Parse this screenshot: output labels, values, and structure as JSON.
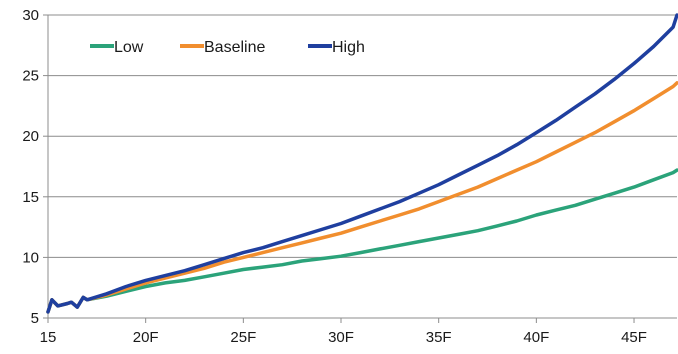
{
  "chart_data": {
    "type": "line",
    "title": "",
    "xlabel": "",
    "ylabel": "",
    "xlim": [
      15,
      47.2
    ],
    "ylim": [
      5,
      30
    ],
    "x_ticks": [
      {
        "value": 15,
        "label": "15"
      },
      {
        "value": 20,
        "label": "20F"
      },
      {
        "value": 25,
        "label": "25F"
      },
      {
        "value": 30,
        "label": "30F"
      },
      {
        "value": 35,
        "label": "35F"
      },
      {
        "value": 40,
        "label": "40F"
      },
      {
        "value": 45,
        "label": "45F"
      }
    ],
    "y_ticks": [
      {
        "value": 5,
        "label": "5"
      },
      {
        "value": 10,
        "label": "10"
      },
      {
        "value": 15,
        "label": "15"
      },
      {
        "value": 20,
        "label": "20"
      },
      {
        "value": 25,
        "label": "25"
      },
      {
        "value": 30,
        "label": "30"
      }
    ],
    "grid": "horizontal",
    "legend_position": "top-left",
    "series": [
      {
        "name": "Low",
        "color": "#2ba37a",
        "points": [
          [
            15,
            5.5
          ],
          [
            15.2,
            6.5
          ],
          [
            15.5,
            6.0
          ],
          [
            16,
            6.2
          ],
          [
            16.2,
            6.3
          ],
          [
            16.5,
            5.9
          ],
          [
            16.8,
            6.7
          ],
          [
            17,
            6.5
          ],
          [
            18,
            6.8
          ],
          [
            19,
            7.2
          ],
          [
            20,
            7.6
          ],
          [
            21,
            7.9
          ],
          [
            22,
            8.1
          ],
          [
            23,
            8.4
          ],
          [
            24,
            8.7
          ],
          [
            25,
            9.0
          ],
          [
            26,
            9.2
          ],
          [
            27,
            9.4
          ],
          [
            28,
            9.7
          ],
          [
            29,
            9.9
          ],
          [
            30,
            10.1
          ],
          [
            31,
            10.4
          ],
          [
            32,
            10.7
          ],
          [
            33,
            11.0
          ],
          [
            34,
            11.3
          ],
          [
            35,
            11.6
          ],
          [
            36,
            11.9
          ],
          [
            37,
            12.2
          ],
          [
            38,
            12.6
          ],
          [
            39,
            13.0
          ],
          [
            40,
            13.5
          ],
          [
            41,
            13.9
          ],
          [
            42,
            14.3
          ],
          [
            43,
            14.8
          ],
          [
            44,
            15.3
          ],
          [
            45,
            15.8
          ],
          [
            46,
            16.4
          ],
          [
            47,
            17.0
          ],
          [
            47.2,
            17.2
          ]
        ]
      },
      {
        "name": "Baseline",
        "color": "#f18e2e",
        "points": [
          [
            15,
            5.5
          ],
          [
            15.2,
            6.5
          ],
          [
            15.5,
            6.0
          ],
          [
            16,
            6.2
          ],
          [
            16.2,
            6.3
          ],
          [
            16.5,
            5.9
          ],
          [
            16.8,
            6.7
          ],
          [
            17,
            6.5
          ],
          [
            18,
            6.9
          ],
          [
            19,
            7.4
          ],
          [
            20,
            7.9
          ],
          [
            21,
            8.3
          ],
          [
            22,
            8.7
          ],
          [
            23,
            9.1
          ],
          [
            24,
            9.6
          ],
          [
            25,
            10.0
          ],
          [
            26,
            10.4
          ],
          [
            27,
            10.8
          ],
          [
            28,
            11.2
          ],
          [
            29,
            11.6
          ],
          [
            30,
            12.0
          ],
          [
            31,
            12.5
          ],
          [
            32,
            13.0
          ],
          [
            33,
            13.5
          ],
          [
            34,
            14.0
          ],
          [
            35,
            14.6
          ],
          [
            36,
            15.2
          ],
          [
            37,
            15.8
          ],
          [
            38,
            16.5
          ],
          [
            39,
            17.2
          ],
          [
            40,
            17.9
          ],
          [
            41,
            18.7
          ],
          [
            42,
            19.5
          ],
          [
            43,
            20.3
          ],
          [
            44,
            21.2
          ],
          [
            45,
            22.1
          ],
          [
            46,
            23.1
          ],
          [
            47,
            24.1
          ],
          [
            47.2,
            24.4
          ]
        ]
      },
      {
        "name": "High",
        "color": "#1f3f9f",
        "points": [
          [
            15,
            5.5
          ],
          [
            15.2,
            6.5
          ],
          [
            15.5,
            6.0
          ],
          [
            16,
            6.2
          ],
          [
            16.2,
            6.3
          ],
          [
            16.5,
            5.9
          ],
          [
            16.8,
            6.7
          ],
          [
            17,
            6.5
          ],
          [
            18,
            7.0
          ],
          [
            19,
            7.6
          ],
          [
            20,
            8.1
          ],
          [
            21,
            8.5
          ],
          [
            22,
            8.9
          ],
          [
            23,
            9.4
          ],
          [
            24,
            9.9
          ],
          [
            25,
            10.4
          ],
          [
            26,
            10.8
          ],
          [
            27,
            11.3
          ],
          [
            28,
            11.8
          ],
          [
            29,
            12.3
          ],
          [
            30,
            12.8
          ],
          [
            31,
            13.4
          ],
          [
            32,
            14.0
          ],
          [
            33,
            14.6
          ],
          [
            34,
            15.3
          ],
          [
            35,
            16.0
          ],
          [
            36,
            16.8
          ],
          [
            37,
            17.6
          ],
          [
            38,
            18.4
          ],
          [
            39,
            19.3
          ],
          [
            40,
            20.3
          ],
          [
            41,
            21.3
          ],
          [
            42,
            22.4
          ],
          [
            43,
            23.5
          ],
          [
            44,
            24.7
          ],
          [
            45,
            26.0
          ],
          [
            46,
            27.4
          ],
          [
            47,
            29.0
          ],
          [
            47.2,
            30.0
          ]
        ]
      }
    ]
  }
}
